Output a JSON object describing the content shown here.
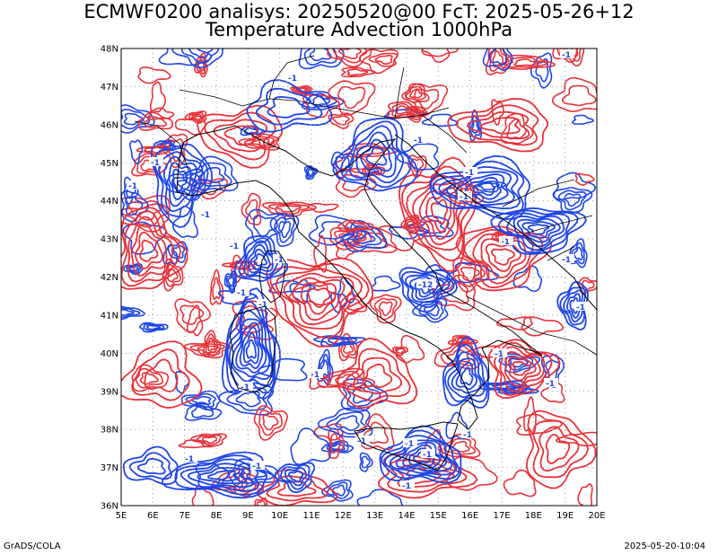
{
  "title_line1": "ECMWF0200 analisys: 20250520@00 FcT: 2025-05-26+12",
  "title_line2": "Temperature Advection 1000hPa",
  "map": {
    "lon_range": [
      5,
      20
    ],
    "lat_range": [
      36,
      48
    ],
    "lon_labels": [
      "5E",
      "6E",
      "7E",
      "8E",
      "9E",
      "10E",
      "11E",
      "12E",
      "13E",
      "14E",
      "15E",
      "16E",
      "17E",
      "18E",
      "19E",
      "20E"
    ],
    "lat_labels": [
      "36N",
      "37N",
      "38N",
      "39N",
      "40N",
      "41N",
      "42N",
      "43N",
      "44N",
      "45N",
      "46N",
      "47N",
      "48N"
    ],
    "gridlines": true,
    "colors": {
      "warm_advection": "#e8323a",
      "cold_advection": "#1f46e6",
      "coastline": "#000000",
      "gridline": "#9a9a9a"
    },
    "contour_labels": [
      "-1",
      "-1",
      "-1",
      "-1",
      "-1",
      "-1",
      "-1",
      "-1",
      "-1",
      "-1",
      "-1",
      "-1",
      "-1",
      "-1",
      "-1",
      "-1",
      "-1",
      "-1",
      "-1",
      "-1",
      "-1",
      "-1",
      "-1",
      "-1",
      "-12",
      "-1",
      "-1"
    ]
  },
  "footer": {
    "left": "GrADS/COLA",
    "right": "2025-05-20-10:04"
  }
}
